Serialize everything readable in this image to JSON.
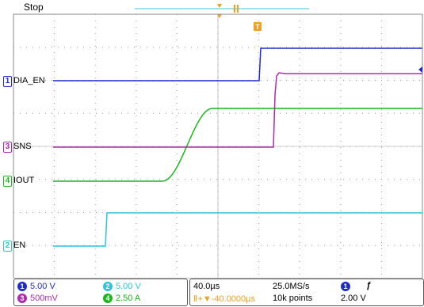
{
  "status": "Stop",
  "channels": [
    {
      "num": "1",
      "label": "DIA_EN",
      "color": "#1f2ad0"
    },
    {
      "num": "3",
      "label": "SNS",
      "color": "#b02ab0"
    },
    {
      "num": "4",
      "label": "IOUT",
      "color": "#18b818"
    },
    {
      "num": "2",
      "label": "EN",
      "color": "#28c6d6"
    }
  ],
  "trigger_marker": "T",
  "readouts": {
    "ch1_scale": "5.00 V",
    "ch2_scale": "5.00 V",
    "ch3_scale": "500mV",
    "ch4_scale": "2.50 A",
    "timebase": "40.0µs",
    "sample_rate": "25.0MS/s",
    "delay": "-40.0000µs",
    "record_length": "10k points",
    "trigger_source": "1",
    "trigger_slope": "ƒ",
    "trigger_level": "2.00 V"
  }
}
